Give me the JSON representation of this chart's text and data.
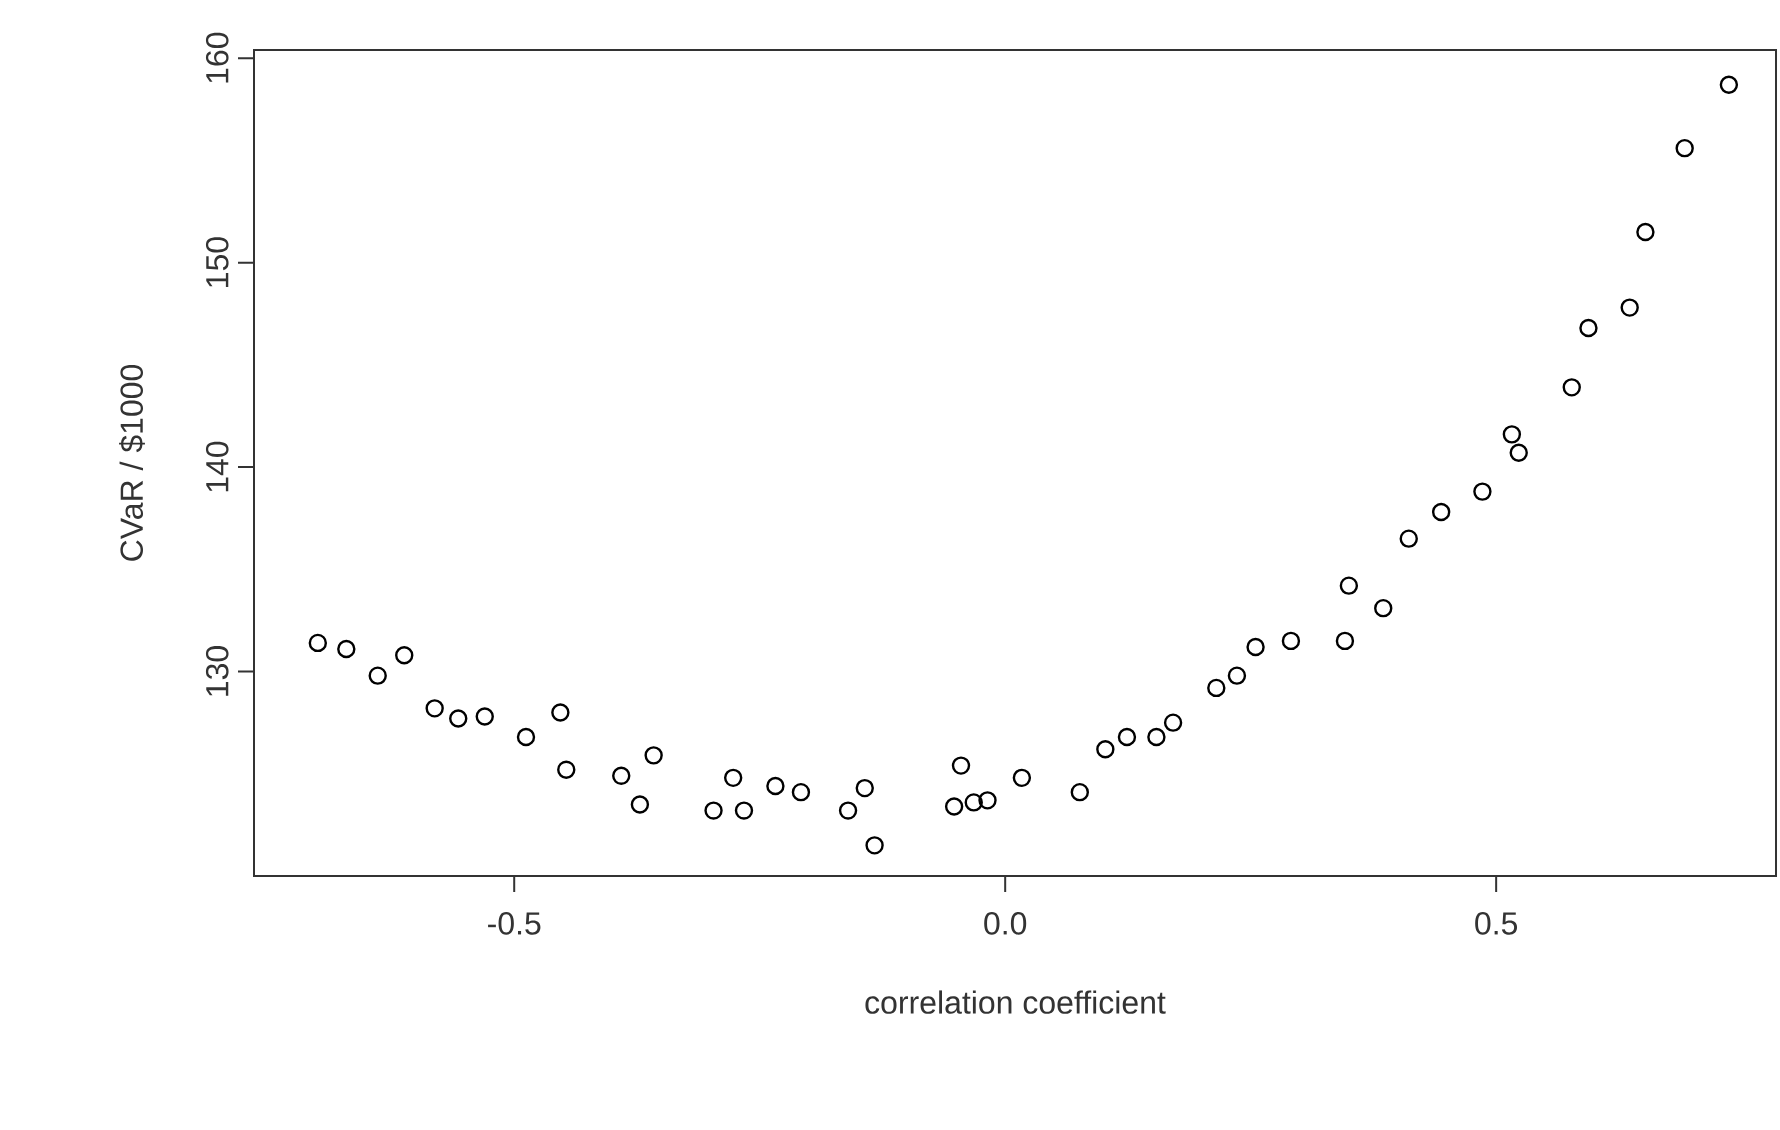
{
  "chart_data": {
    "type": "scatter",
    "xlabel": "correlation coefficient",
    "ylabel": "CVaR / $1000",
    "xlim": [
      -0.765,
      0.785
    ],
    "ylim": [
      120.0,
      160.4
    ],
    "xticks": [
      {
        "value": -0.5,
        "label": "-0.5"
      },
      {
        "value": 0.0,
        "label": "0.0"
      },
      {
        "value": 0.5,
        "label": "0.5"
      }
    ],
    "yticks": [
      130,
      140,
      150,
      160
    ],
    "grid": false,
    "marker": "circle",
    "series": [
      {
        "color": "#000000",
        "x": [
          -0.7,
          -0.671,
          -0.639,
          -0.612,
          -0.581,
          -0.557,
          -0.53,
          -0.488,
          -0.453,
          -0.447,
          -0.391,
          -0.372,
          -0.358,
          -0.297,
          -0.277,
          -0.266,
          -0.234,
          -0.208,
          -0.16,
          -0.143,
          -0.133,
          -0.052,
          -0.045,
          -0.032,
          -0.018,
          0.017,
          0.076,
          0.102,
          0.124,
          0.154,
          0.171,
          0.215,
          0.236,
          0.255,
          0.291,
          0.346,
          0.35,
          0.385,
          0.411,
          0.444,
          0.486,
          0.516,
          0.523,
          0.577,
          0.594,
          0.636,
          0.652,
          0.692,
          0.737
        ],
        "values": [
          131.4,
          131.1,
          129.8,
          130.8,
          128.2,
          127.7,
          127.8,
          126.8,
          128.0,
          125.2,
          124.9,
          123.5,
          125.9,
          123.2,
          124.8,
          123.2,
          124.4,
          124.1,
          123.2,
          124.3,
          121.5,
          123.4,
          125.4,
          123.6,
          123.7,
          124.8,
          124.1,
          126.2,
          126.8,
          126.8,
          127.5,
          129.2,
          129.8,
          131.2,
          131.5,
          131.5,
          134.2,
          133.1,
          136.5,
          137.8,
          138.8,
          141.6,
          140.7,
          143.9,
          146.8,
          147.8,
          151.5,
          155.6,
          158.7
        ]
      }
    ]
  }
}
